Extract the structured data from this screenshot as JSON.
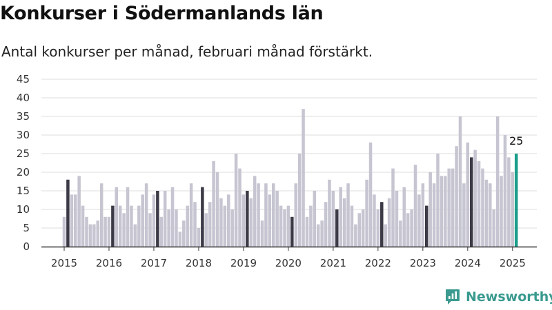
{
  "title": "Konkurser i Södermanlands län",
  "subtitle": "Antal konkurser per månad, februari månad förstärkt.",
  "logo": {
    "text": "Newsworthy",
    "icon": "newsworthy-logo-icon"
  },
  "colors": {
    "bar": "#c6c5d1",
    "february": "#3b3a46",
    "latest": "#1a9e8a",
    "grid": "#dddddd",
    "axis": "#333333",
    "brand": "#3a9a8f"
  },
  "chart_data": {
    "type": "bar",
    "title": "Konkurser i Södermanlands län",
    "subtitle": "Antal konkurser per månad, februari månad förstärkt.",
    "xlabel": "",
    "ylabel": "",
    "ylim": [
      0,
      45
    ],
    "yticks": [
      0,
      5,
      10,
      15,
      20,
      25,
      30,
      35,
      40,
      45
    ],
    "xticks": [
      "2015",
      "2016",
      "2017",
      "2018",
      "2019",
      "2020",
      "2021",
      "2022",
      "2023",
      "2024",
      "2025"
    ],
    "grid": true,
    "start_period": "2015-01",
    "end_period": "2025-02",
    "highlight": "February of each year (dark) and the latest month (teal)",
    "last_value_label": "25",
    "values": [
      8,
      18,
      14,
      14,
      19,
      11,
      8,
      6,
      6,
      7,
      17,
      8,
      8,
      11,
      16,
      11,
      9,
      16,
      11,
      6,
      11,
      14,
      17,
      9,
      14,
      15,
      8,
      15,
      10,
      16,
      10,
      4,
      7,
      11,
      17,
      12,
      5,
      16,
      9,
      12,
      23,
      20,
      13,
      11,
      14,
      10,
      25,
      21,
      14,
      15,
      13,
      19,
      17,
      7,
      17,
      14,
      17,
      15,
      11,
      10,
      11,
      8,
      17,
      25,
      37,
      8,
      11,
      15,
      6,
      7,
      12,
      18,
      15,
      10,
      16,
      13,
      17,
      11,
      6,
      9,
      10,
      18,
      28,
      14,
      10,
      12,
      6,
      13,
      21,
      15,
      7,
      16,
      9,
      10,
      22,
      14,
      17,
      11,
      20,
      17,
      25,
      19,
      19,
      21,
      21,
      27,
      35,
      17,
      28,
      24,
      26,
      23,
      21,
      18,
      17,
      10,
      35,
      19,
      30,
      24,
      20,
      25
    ]
  }
}
